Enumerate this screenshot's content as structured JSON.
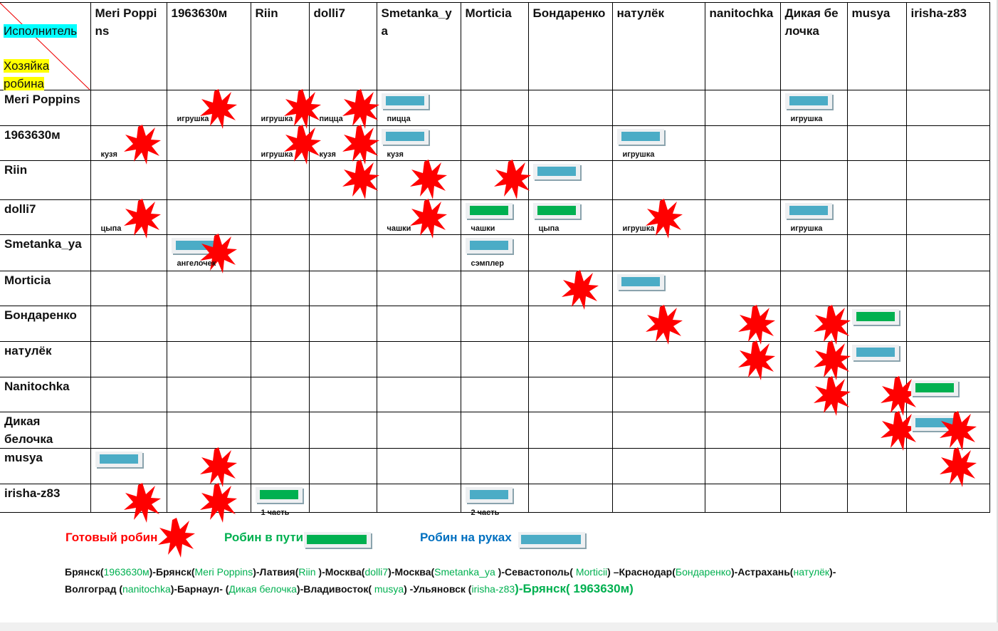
{
  "corner": {
    "executor": "Исполнитель",
    "owner": "Хозяйка робина"
  },
  "columns": [
    "Meri Poppins",
    "1963630м",
    "Riin",
    "dolli7",
    "Smetanka_ya",
    "Morticia",
    "Бондаренко",
    "натулёк",
    "nanitochka",
    "Дикая белочка",
    "musya",
    "irisha-z83"
  ],
  "rows": [
    "Meri Poppins",
    "1963630м",
    "Riin",
    "dolli7",
    "Smetanka_ya",
    "Morticia",
    "Бондаренко",
    "натулёк",
    "Nanitochka",
    "Дикая белочка",
    "musya",
    "irisha-z83"
  ],
  "colors": {
    "ready": "#ff0000",
    "transit": "#00b050",
    "hands": "#4bacc6"
  },
  "markers": [
    {
      "r": 0,
      "c": 1,
      "t": [
        "star"
      ],
      "label": "игрушка"
    },
    {
      "r": 0,
      "c": 2,
      "t": [
        "star"
      ],
      "label": "игрушка"
    },
    {
      "r": 0,
      "c": 3,
      "t": [
        "star"
      ],
      "label": "пицца"
    },
    {
      "r": 0,
      "c": 4,
      "t": [
        "hands"
      ],
      "label": "пицца"
    },
    {
      "r": 0,
      "c": 9,
      "t": [
        "hands"
      ],
      "label": "игрушка"
    },
    {
      "r": 1,
      "c": 0,
      "t": [
        "star"
      ],
      "label": "кузя"
    },
    {
      "r": 1,
      "c": 2,
      "t": [
        "star"
      ],
      "label": "игрушка"
    },
    {
      "r": 1,
      "c": 3,
      "t": [
        "star"
      ],
      "label": "кузя"
    },
    {
      "r": 1,
      "c": 4,
      "t": [
        "hands"
      ],
      "label": "кузя"
    },
    {
      "r": 1,
      "c": 7,
      "t": [
        "hands"
      ],
      "label": "игрушка"
    },
    {
      "r": 2,
      "c": 3,
      "t": [
        "star"
      ]
    },
    {
      "r": 2,
      "c": 4,
      "t": [
        "star"
      ]
    },
    {
      "r": 2,
      "c": 5,
      "t": [
        "star"
      ]
    },
    {
      "r": 2,
      "c": 6,
      "t": [
        "hands"
      ]
    },
    {
      "r": 3,
      "c": 0,
      "t": [
        "star"
      ],
      "label": "цыпа"
    },
    {
      "r": 3,
      "c": 4,
      "t": [
        "star"
      ],
      "label": "чашки"
    },
    {
      "r": 3,
      "c": 5,
      "t": [
        "transit"
      ],
      "label": "чашки"
    },
    {
      "r": 3,
      "c": 6,
      "t": [
        "transit"
      ],
      "label": "цыпа"
    },
    {
      "r": 3,
      "c": 7,
      "t": [
        "star"
      ],
      "label": "игрушка"
    },
    {
      "r": 3,
      "c": 9,
      "t": [
        "hands"
      ],
      "label": "игрушка"
    },
    {
      "r": 4,
      "c": 1,
      "t": [
        "hands",
        "star"
      ],
      "label": "ангелочек"
    },
    {
      "r": 4,
      "c": 5,
      "t": [
        "hands"
      ],
      "label": "сэмплер"
    },
    {
      "r": 5,
      "c": 6,
      "t": [
        "star"
      ]
    },
    {
      "r": 5,
      "c": 7,
      "t": [
        "hands"
      ]
    },
    {
      "r": 6,
      "c": 7,
      "t": [
        "star"
      ]
    },
    {
      "r": 6,
      "c": 8,
      "t": [
        "star"
      ]
    },
    {
      "r": 6,
      "c": 9,
      "t": [
        "star"
      ]
    },
    {
      "r": 6,
      "c": 10,
      "t": [
        "transit"
      ]
    },
    {
      "r": 7,
      "c": 8,
      "t": [
        "star"
      ]
    },
    {
      "r": 7,
      "c": 9,
      "t": [
        "star"
      ]
    },
    {
      "r": 7,
      "c": 10,
      "t": [
        "hands"
      ]
    },
    {
      "r": 8,
      "c": 9,
      "t": [
        "star"
      ]
    },
    {
      "r": 8,
      "c": 10,
      "t": [
        "star"
      ]
    },
    {
      "r": 8,
      "c": 11,
      "t": [
        "transit"
      ]
    },
    {
      "r": 9,
      "c": 10,
      "t": [
        "star"
      ]
    },
    {
      "r": 9,
      "c": 11,
      "t": [
        "star",
        "hands"
      ]
    },
    {
      "r": 10,
      "c": 0,
      "t": [
        "hands"
      ]
    },
    {
      "r": 10,
      "c": 1,
      "t": [
        "star"
      ]
    },
    {
      "r": 10,
      "c": 11,
      "t": [
        "star"
      ]
    },
    {
      "r": 11,
      "c": 0,
      "t": [
        "star"
      ]
    },
    {
      "r": 11,
      "c": 1,
      "t": [
        "star"
      ]
    },
    {
      "r": 11,
      "c": 2,
      "t": [
        "transit"
      ],
      "label": "1 часть"
    },
    {
      "r": 11,
      "c": 5,
      "t": [
        "hands"
      ],
      "label": "2 часть"
    }
  ],
  "legend": {
    "ready": "Готовый робин",
    "transit": "Робин в пути",
    "hands": "Робин на руках"
  },
  "route": {
    "line1": [
      [
        "Брянск(",
        ""
      ],
      [
        "1963630м",
        "g"
      ],
      [
        ")-Брянск(",
        ""
      ],
      [
        "Meri Poppins",
        "g"
      ],
      [
        ")-Латвия(",
        ""
      ],
      [
        "Riin ",
        "g"
      ],
      [
        ")-Москва(",
        ""
      ],
      [
        "dolli7",
        "g"
      ],
      [
        ")-Москва(",
        ""
      ],
      [
        "Smetanka_ya ",
        "g"
      ],
      [
        ")-Севастополь( ",
        ""
      ],
      [
        "Morticii",
        "g"
      ],
      [
        ") –Краснодар(",
        ""
      ],
      [
        "Бондаренко",
        "g"
      ],
      [
        ")-Астрахань(",
        ""
      ],
      [
        "натулёк",
        "g"
      ],
      [
        ")-",
        ""
      ]
    ],
    "line2": [
      [
        "Волгоград (",
        ""
      ],
      [
        "nanitochka",
        "g"
      ],
      [
        ")-Барнаул- (",
        ""
      ],
      [
        "Дикая белочка",
        "g"
      ],
      [
        ")-Владивосток( ",
        ""
      ],
      [
        "musya",
        "g"
      ],
      [
        ") -Ульяновск (",
        ""
      ],
      [
        "irisha-z83",
        "g"
      ],
      [
        ")-Брянск( ",
        "big"
      ],
      [
        "1963630м",
        "gbig"
      ],
      [
        ")",
        "big"
      ]
    ]
  }
}
